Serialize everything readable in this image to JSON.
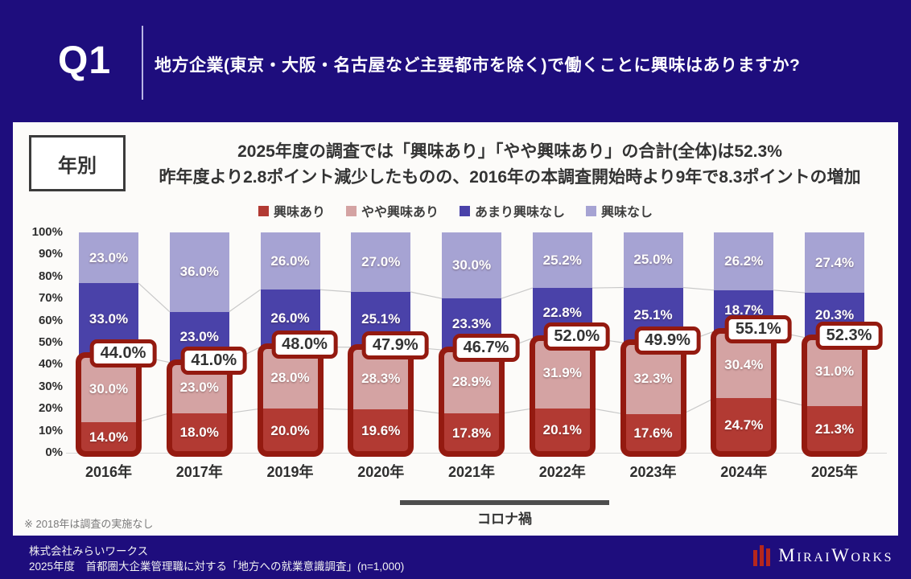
{
  "header": {
    "q_label": "Q1",
    "question": "地方企業(東京・大阪・名古屋など主要都市を除く)で働くことに興味はありますか?"
  },
  "panel": {
    "tag": "年別",
    "title_line1": "2025年度の調査では「興味あり」「やや興味あり」の合計(全体)は52.3%",
    "title_line2": "昨年度より2.8ポイント減少したものの、2016年の本調査開始時より9年で8.3ポイントの増加",
    "note": "※ 2018年は調査の実施なし",
    "covid_label": "コロナ禍"
  },
  "chart_data": {
    "type": "bar",
    "stacked": true,
    "title": "年別 地方企業で働くことへの興味(2016-2025)",
    "categories": [
      "2016年",
      "2017年",
      "2019年",
      "2020年",
      "2021年",
      "2022年",
      "2023年",
      "2024年",
      "2025年"
    ],
    "series": [
      {
        "name": "興味あり",
        "color": "#b23a33",
        "values": [
          14.0,
          18.0,
          20.0,
          19.6,
          17.8,
          20.1,
          17.6,
          24.7,
          21.3
        ]
      },
      {
        "name": "やや興味あり",
        "color": "#d4a3a3",
        "values": [
          30.0,
          23.0,
          28.0,
          28.3,
          28.9,
          31.9,
          32.3,
          30.4,
          31.0
        ]
      },
      {
        "name": "あまり興味なし",
        "color": "#4a42a9",
        "values": [
          33.0,
          23.0,
          26.0,
          25.1,
          23.3,
          22.8,
          25.1,
          18.7,
          20.3
        ]
      },
      {
        "name": "興味なし",
        "color": "#a6a3d3",
        "values": [
          23.0,
          36.0,
          26.0,
          27.0,
          30.0,
          25.2,
          25.0,
          26.2,
          27.4
        ]
      }
    ],
    "combined_labels": [
      "44.0%",
      "41.0%",
      "48.0%",
      "47.9%",
      "46.7%",
      "52.0%",
      "49.9%",
      "55.1%",
      "52.3%"
    ],
    "y_ticks": [
      "0%",
      "10%",
      "20%",
      "30%",
      "40%",
      "50%",
      "60%",
      "70%",
      "80%",
      "90%",
      "100%"
    ],
    "ylim": [
      0,
      100
    ],
    "grid": false,
    "legend_position": "top",
    "covid_span": {
      "from": "2020年",
      "to": "2022年"
    }
  },
  "footer": {
    "company": "株式会社みらいワークス",
    "source": "2025年度　首都圏大企業管理職に対する「地方への就業意識調査」(n=1,000)",
    "logo": {
      "parts": [
        "M",
        "IRAI",
        "W",
        "ORKS"
      ],
      "bar_color": "#b5271d"
    }
  }
}
